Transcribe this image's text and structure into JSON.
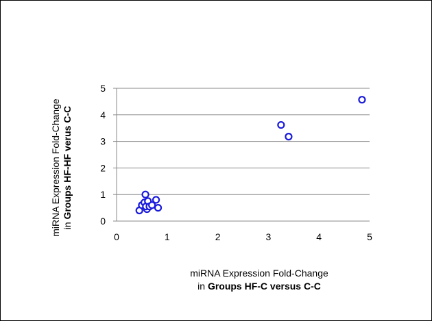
{
  "chart_data": {
    "type": "scatter",
    "xlabel_line1": "miRNA Expression Fold-Change",
    "xlabel_line2_prefix": "in ",
    "xlabel_line2_bold": "Groups HF-C versus C-C",
    "ylabel_line1": "miRNA Expression Fold-Change",
    "ylabel_line2_prefix": "in ",
    "ylabel_line2_bold": "Groups HF-HF verus C-C",
    "xlim": [
      0,
      5
    ],
    "ylim": [
      0,
      5
    ],
    "xticks": [
      "0",
      "1",
      "2",
      "3",
      "4",
      "5"
    ],
    "yticks": [
      "0",
      "1",
      "2",
      "3",
      "4",
      "5"
    ],
    "grid": "horizontal",
    "marker_color": "#1a1adc",
    "points": [
      {
        "x": 0.45,
        "y": 0.4
      },
      {
        "x": 0.5,
        "y": 0.6
      },
      {
        "x": 0.55,
        "y": 0.7
      },
      {
        "x": 0.57,
        "y": 1.0
      },
      {
        "x": 0.6,
        "y": 0.45
      },
      {
        "x": 0.58,
        "y": 0.55
      },
      {
        "x": 0.62,
        "y": 0.75
      },
      {
        "x": 0.65,
        "y": 0.55
      },
      {
        "x": 0.7,
        "y": 0.6
      },
      {
        "x": 0.78,
        "y": 0.8
      },
      {
        "x": 0.82,
        "y": 0.5
      },
      {
        "x": 3.25,
        "y": 3.62
      },
      {
        "x": 3.4,
        "y": 3.18
      },
      {
        "x": 4.85,
        "y": 4.57
      }
    ]
  }
}
